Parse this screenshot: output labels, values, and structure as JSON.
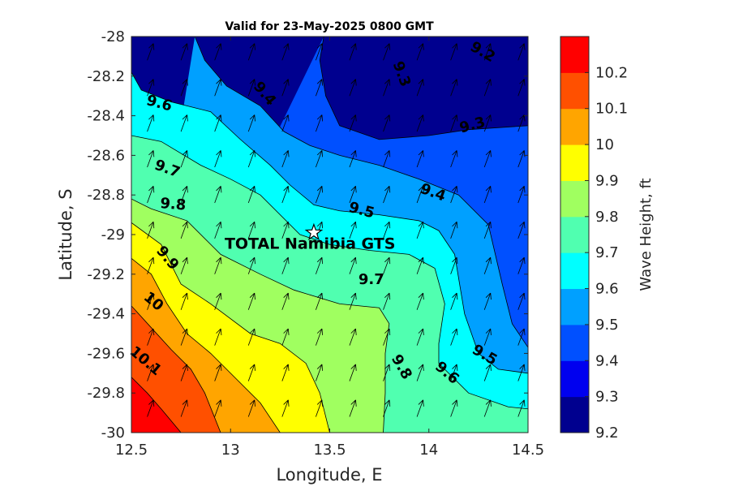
{
  "chart_data": {
    "type": "heatmap",
    "subtype": "filled-contour",
    "title": "Valid for 23-May-2025 0800 GMT",
    "xlabel": "Longitude, E",
    "ylabel": "Latitude, S",
    "xlim": [
      12.5,
      14.5
    ],
    "ylim": [
      -30,
      -28
    ],
    "x_ticks": [
      12.5,
      13,
      13.5,
      14,
      14.5
    ],
    "x_tick_labels": [
      "12.5",
      "13",
      "13.5",
      "14",
      "14.5"
    ],
    "y_ticks": [
      -28,
      -28.2,
      -28.4,
      -28.6,
      -28.8,
      -29,
      -29.2,
      -29.4,
      -29.6,
      -29.8,
      -30
    ],
    "y_tick_labels": [
      "-28",
      "-28.2",
      "-28.4",
      "-28.6",
      "-28.8",
      "-29",
      "-29.2",
      "-29.4",
      "-29.6",
      "-29.8",
      "-30"
    ],
    "colorbar": {
      "label": "Wave Height, ft",
      "levels": [
        9.2,
        9.3,
        9.4,
        9.5,
        9.6,
        9.7,
        9.8,
        9.9,
        10,
        10.1,
        10.2
      ],
      "tick_labels": [
        "9.2",
        "9.3",
        "9.4",
        "9.5",
        "9.6",
        "9.7",
        "9.8",
        "9.9",
        "10",
        "10.1",
        "10.2"
      ],
      "colors": [
        "#00008f",
        "#0000ef",
        "#0050ff",
        "#00a0ff",
        "#00ffff",
        "#50ffb0",
        "#a0ff60",
        "#ffff00",
        "#ffa500",
        "#ff5000",
        "#ff0000"
      ]
    },
    "contours": [
      {
        "level": 9.2,
        "points": [
          [
            13.93,
            -28.0
          ],
          [
            14.5,
            -28.0
          ]
        ]
      },
      {
        "level": 9.3,
        "points": [
          [
            13.47,
            -28.0
          ],
          [
            13.45,
            -28.12
          ],
          [
            13.48,
            -28.3
          ],
          [
            13.55,
            -28.45
          ],
          [
            13.75,
            -28.52
          ],
          [
            14.0,
            -28.5
          ],
          [
            14.2,
            -28.47
          ],
          [
            14.5,
            -28.45
          ]
        ]
      },
      {
        "level": 9.4,
        "points": [
          [
            12.82,
            -28.0
          ],
          [
            12.87,
            -28.12
          ],
          [
            12.98,
            -28.25
          ],
          [
            13.15,
            -28.35
          ],
          [
            13.27,
            -28.48
          ],
          [
            13.4,
            -28.55
          ],
          [
            13.55,
            -28.6
          ],
          [
            13.75,
            -28.65
          ],
          [
            13.95,
            -28.72
          ],
          [
            14.15,
            -28.8
          ],
          [
            14.3,
            -28.95
          ],
          [
            14.37,
            -29.25
          ],
          [
            14.42,
            -29.45
          ],
          [
            14.5,
            -29.57
          ]
        ]
      },
      {
        "level": 9.5,
        "points": [
          [
            12.5,
            -28.18
          ],
          [
            12.55,
            -28.27
          ],
          [
            12.7,
            -28.33
          ],
          [
            12.9,
            -28.38
          ],
          [
            13.05,
            -28.52
          ],
          [
            13.2,
            -28.65
          ],
          [
            13.3,
            -28.75
          ],
          [
            13.42,
            -28.85
          ],
          [
            13.55,
            -28.88
          ],
          [
            13.75,
            -28.9
          ],
          [
            13.95,
            -28.93
          ],
          [
            14.05,
            -28.98
          ],
          [
            14.13,
            -29.1
          ],
          [
            14.18,
            -29.4
          ],
          [
            14.25,
            -29.6
          ],
          [
            14.35,
            -29.68
          ],
          [
            14.5,
            -29.7
          ]
        ]
      },
      {
        "level": 9.6,
        "points": [
          [
            12.5,
            -28.5
          ],
          [
            12.65,
            -28.53
          ],
          [
            12.85,
            -28.65
          ],
          [
            13.0,
            -28.72
          ],
          [
            13.15,
            -28.8
          ],
          [
            13.35,
            -29.0
          ],
          [
            13.5,
            -29.05
          ],
          [
            13.7,
            -29.08
          ],
          [
            13.9,
            -29.1
          ],
          [
            14.03,
            -29.17
          ],
          [
            14.08,
            -29.35
          ],
          [
            14.05,
            -29.55
          ],
          [
            14.05,
            -29.65
          ],
          [
            14.2,
            -29.8
          ],
          [
            14.4,
            -29.87
          ],
          [
            14.5,
            -29.88
          ]
        ]
      },
      {
        "level": 9.7,
        "points": [
          [
            12.5,
            -28.82
          ],
          [
            12.6,
            -28.87
          ],
          [
            12.78,
            -28.93
          ],
          [
            12.95,
            -29.1
          ],
          [
            13.15,
            -29.2
          ],
          [
            13.32,
            -29.28
          ],
          [
            13.55,
            -29.35
          ],
          [
            13.75,
            -29.37
          ],
          [
            13.8,
            -29.45
          ],
          [
            13.78,
            -29.6
          ],
          [
            13.78,
            -29.8
          ],
          [
            13.77,
            -30.0
          ]
        ]
      },
      {
        "level": 9.8,
        "points": [
          [
            12.5,
            -28.94
          ],
          [
            12.65,
            -29.05
          ],
          [
            12.75,
            -29.25
          ],
          [
            12.9,
            -29.35
          ],
          [
            13.1,
            -29.5
          ],
          [
            13.25,
            -29.55
          ],
          [
            13.38,
            -29.65
          ],
          [
            13.45,
            -29.8
          ],
          [
            13.5,
            -30.0
          ]
        ]
      },
      {
        "level": 9.9,
        "points": [
          [
            12.5,
            -29.12
          ],
          [
            12.6,
            -29.2
          ],
          [
            12.68,
            -29.35
          ],
          [
            12.78,
            -29.5
          ],
          [
            12.9,
            -29.6
          ],
          [
            13.05,
            -29.75
          ],
          [
            13.15,
            -29.85
          ],
          [
            13.25,
            -30.0
          ]
        ]
      },
      {
        "level": 10.0,
        "points": [
          [
            12.5,
            -29.36
          ],
          [
            12.6,
            -29.47
          ],
          [
            12.7,
            -29.58
          ],
          [
            12.8,
            -29.68
          ],
          [
            12.87,
            -29.8
          ],
          [
            12.95,
            -30.0
          ]
        ]
      },
      {
        "level": 10.1,
        "points": [
          [
            12.5,
            -29.72
          ],
          [
            12.58,
            -29.8
          ],
          [
            12.65,
            -29.88
          ],
          [
            12.75,
            -30.0
          ]
        ]
      }
    ],
    "contour_labels": [
      {
        "text": "9.2",
        "x": 14.27,
        "y": -28.08,
        "angle": 30
      },
      {
        "text": "9.3",
        "x": 13.86,
        "y": -28.19,
        "angle": 70
      },
      {
        "text": "9.3",
        "x": 14.22,
        "y": -28.45,
        "angle": -15
      },
      {
        "text": "9.4",
        "x": 13.17,
        "y": -28.29,
        "angle": 50
      },
      {
        "text": "9.4",
        "x": 14.02,
        "y": -28.79,
        "angle": 20
      },
      {
        "text": "9.5",
        "x": 13.66,
        "y": -28.88,
        "angle": 15
      },
      {
        "text": "9.5",
        "x": 14.28,
        "y": -29.61,
        "angle": 30
      },
      {
        "text": "9.6",
        "x": 12.64,
        "y": -28.34,
        "angle": 15
      },
      {
        "text": "9.6",
        "x": 14.09,
        "y": -29.7,
        "angle": 40
      },
      {
        "text": "9.7",
        "x": 12.68,
        "y": -28.67,
        "angle": 20
      },
      {
        "text": "9.7",
        "x": 13.71,
        "y": -29.23,
        "angle": 0
      },
      {
        "text": "9.8",
        "x": 12.71,
        "y": -28.85,
        "angle": 5
      },
      {
        "text": "9.8",
        "x": 13.86,
        "y": -29.67,
        "angle": 60
      },
      {
        "text": "9.9",
        "x": 12.68,
        "y": -29.12,
        "angle": 50
      },
      {
        "text": "10",
        "x": 12.61,
        "y": -29.34,
        "angle": 40
      },
      {
        "text": "10.1",
        "x": 12.57,
        "y": -29.64,
        "angle": 40
      }
    ],
    "vectors": {
      "x": [
        12.58,
        12.75,
        12.92,
        13.09,
        13.26,
        13.43,
        13.6,
        13.77,
        13.94,
        14.11,
        14.28,
        14.45
      ],
      "y": [
        -28.12,
        -28.3,
        -28.48,
        -28.66,
        -28.84,
        -29.02,
        -29.2,
        -29.38,
        -29.56,
        -29.74,
        -29.92
      ],
      "direction_deg": 20,
      "length": 0.09
    },
    "annotations": [
      {
        "text": "TOTAL Namibia GTS",
        "x": 13.42,
        "y": -28.99,
        "marker": "pentagram"
      }
    ]
  }
}
